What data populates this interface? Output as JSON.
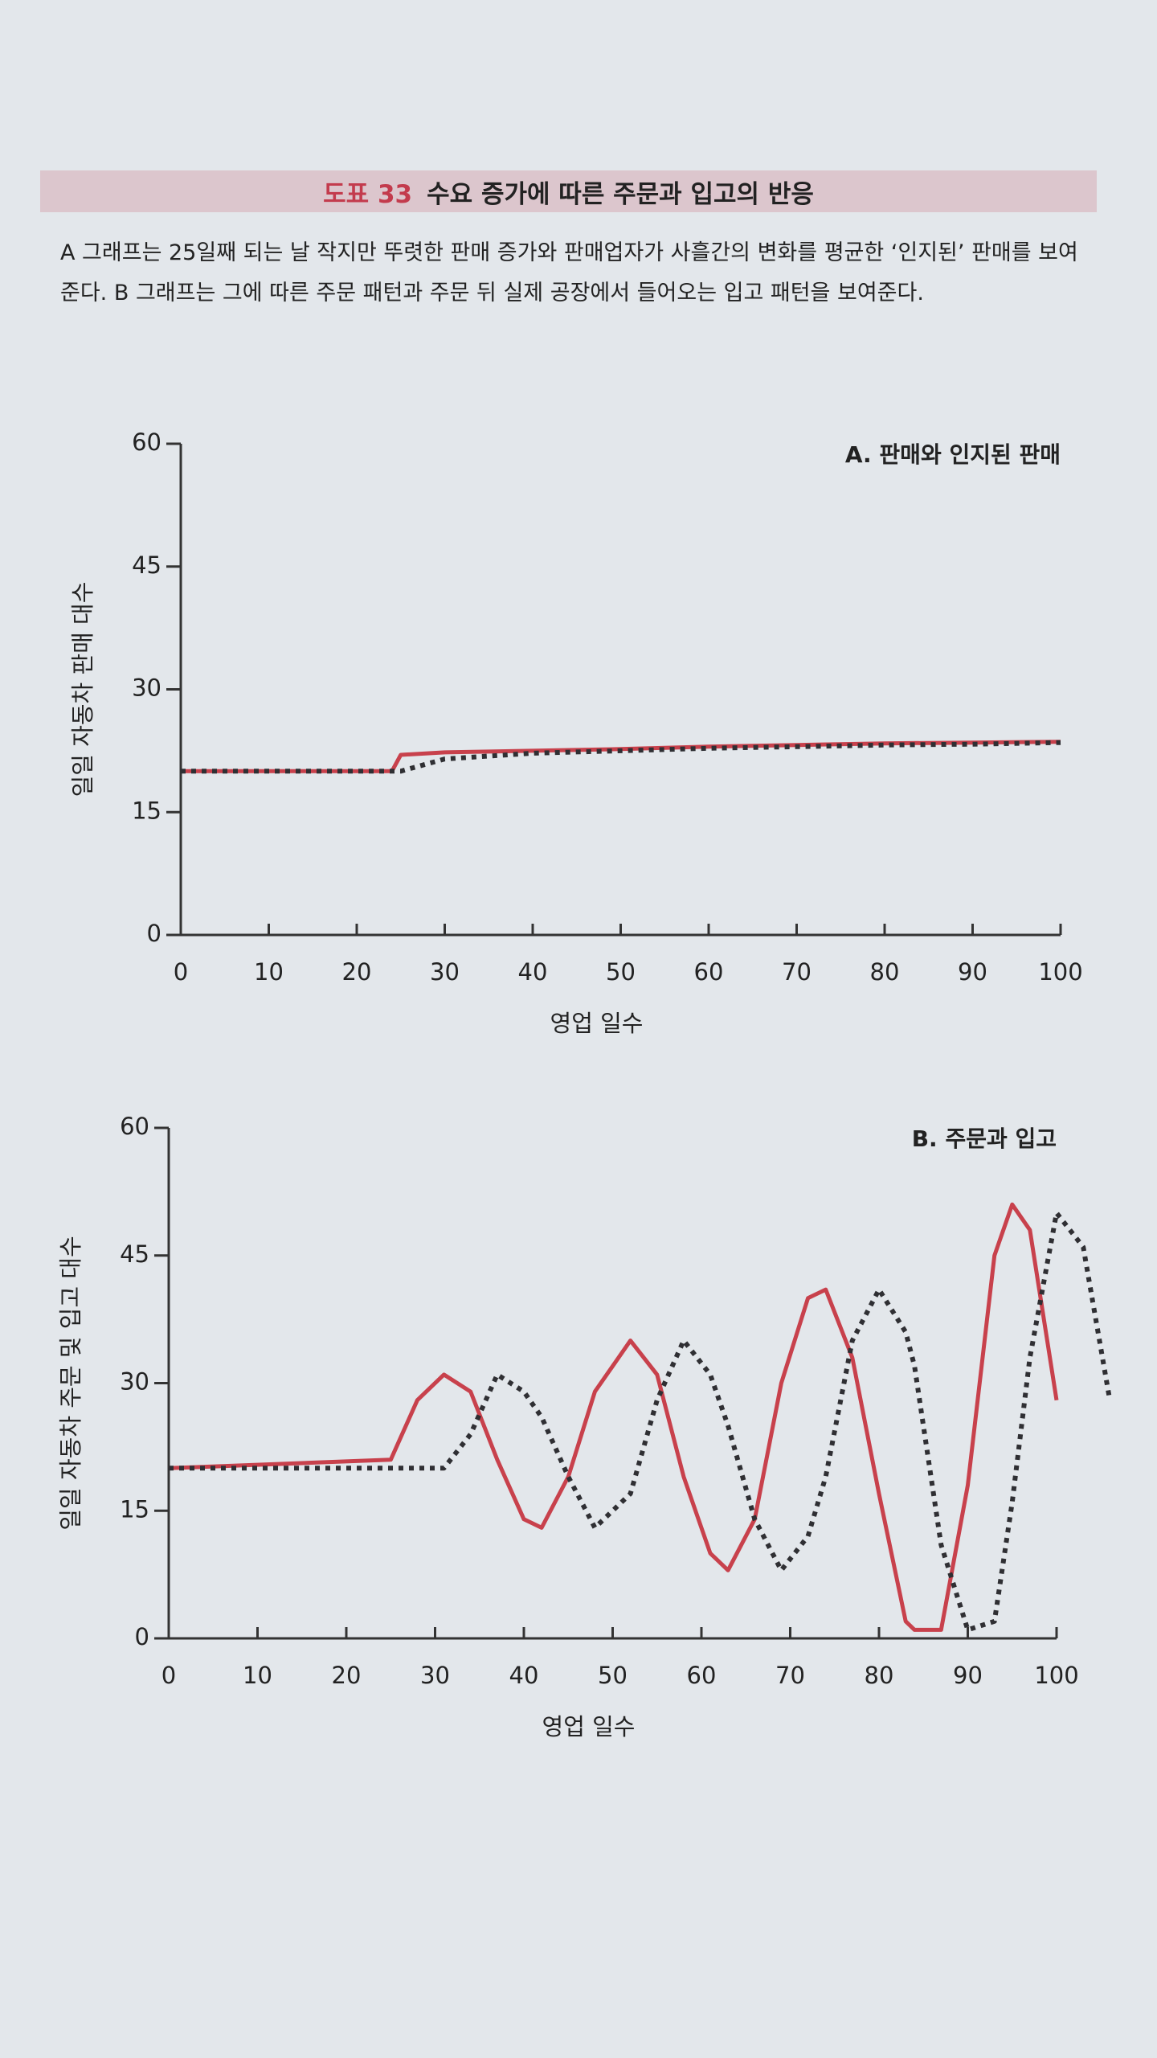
{
  "header": {
    "label": "도표 33",
    "title": "수요 증가에 따른 주문과 입고의 반응"
  },
  "description": "A 그래프는 25일째 되는 날 작지만 뚜렷한 판매 증가와 판매업자가 사흘간의 변화를 평균한 ‘인지된’ 판매를 보여준다. B 그래프는 그에 따른 주문 패턴과 주문 뒤 실제 공장에서 들어오는 입고 패턴을 보여준다.",
  "chart_data": [
    {
      "type": "line",
      "title": "A. 판매와 인지된 판매",
      "y_label": "일일 자동차 판매 대수",
      "x_label": "영업 일수",
      "x": [
        0,
        24,
        25,
        30,
        40,
        50,
        60,
        70,
        80,
        90,
        100
      ],
      "series": [
        {
          "color": "#c8414c",
          "style": "solid",
          "values": [
            20,
            20,
            22,
            22.3,
            22.5,
            22.7,
            23,
            23.2,
            23.4,
            23.5,
            23.6
          ]
        },
        {
          "color": "#2f2f33",
          "style": "dotted",
          "values": [
            20,
            20,
            20,
            21.5,
            22.2,
            22.5,
            22.8,
            23,
            23.2,
            23.3,
            23.5
          ]
        }
      ],
      "xlim": [
        0,
        100
      ],
      "xticks": [
        0,
        10,
        20,
        30,
        40,
        50,
        60,
        70,
        80,
        90,
        100
      ],
      "ylim": [
        0,
        60
      ],
      "yticks": [
        0,
        15,
        30,
        45,
        60
      ]
    },
    {
      "type": "line",
      "title": "B. 주문과 입고",
      "y_label": "일일 자동차 주문 및 입고 대수",
      "x_label": "영업 일수",
      "x": [
        0,
        25,
        28,
        31,
        34,
        37,
        40,
        42,
        45,
        48,
        52,
        55,
        58,
        61,
        63,
        66,
        69,
        72,
        74,
        77,
        80,
        83,
        84,
        87,
        90,
        93,
        95,
        97,
        100,
        103,
        106
      ],
      "series": [
        {
          "color": "#c8414c",
          "style": "solid",
          "values": [
            20,
            21,
            28,
            31,
            29,
            21,
            14,
            13,
            19,
            29,
            35,
            31,
            19,
            10,
            8,
            14,
            30,
            40,
            41,
            33,
            17,
            2,
            1,
            1,
            18,
            45,
            51,
            48,
            28,
            null,
            null
          ]
        },
        {
          "color": "#2f2f33",
          "style": "dotted",
          "values": [
            20,
            20,
            20,
            20,
            24,
            31,
            29,
            26,
            19,
            13,
            17,
            28,
            35,
            31,
            25,
            14,
            8,
            12,
            19,
            35,
            41,
            36,
            32,
            11,
            1,
            2,
            16,
            33,
            50,
            46,
            28
          ]
        }
      ],
      "xlim": [
        0,
        100
      ],
      "xticks": [
        0,
        10,
        20,
        30,
        40,
        50,
        60,
        70,
        80,
        90,
        100
      ],
      "ylim": [
        0,
        60
      ],
      "yticks": [
        0,
        15,
        30,
        45,
        60
      ]
    }
  ]
}
